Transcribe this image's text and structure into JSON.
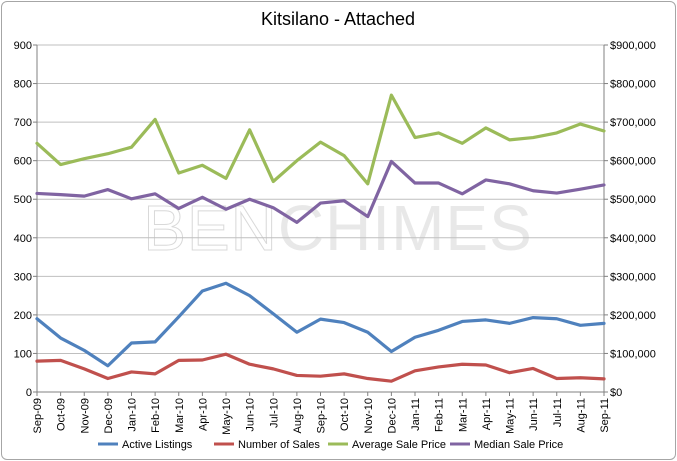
{
  "chart_data": {
    "type": "line",
    "title": "Kitsilano - Attached",
    "watermark": {
      "part1": "BEN",
      "part2": "CHIMES"
    },
    "categories": [
      "Sep-09",
      "Oct-09",
      "Nov-09",
      "Dec-09",
      "Jan-10",
      "Feb-10",
      "Mar-10",
      "Apr-10",
      "May-10",
      "Jun-10",
      "Jul-10",
      "Aug-10",
      "Sep-10",
      "Oct-10",
      "Nov-10",
      "Dec-10",
      "Jan-11",
      "Feb-11",
      "Mar-11",
      "Apr-11",
      "May-11",
      "Jun-11",
      "Jul-11",
      "Aug-11",
      "Sep-11"
    ],
    "y_left": {
      "min": 0,
      "max": 900,
      "ticks": [
        0,
        100,
        200,
        300,
        400,
        500,
        600,
        700,
        800,
        900
      ],
      "tick_labels": [
        "0",
        "100",
        "200",
        "300",
        "400",
        "500",
        "600",
        "700",
        "800",
        "900"
      ]
    },
    "y_right": {
      "min": 0,
      "max": 900000,
      "ticks": [
        0,
        100000,
        200000,
        300000,
        400000,
        500000,
        600000,
        700000,
        800000,
        900000
      ],
      "tick_labels": [
        "$0",
        "$100,000",
        "$200,000",
        "$300,000",
        "$400,000",
        "$500,000",
        "$600,000",
        "$700,000",
        "$800,000",
        "$900,000"
      ]
    },
    "grid": true,
    "legend_position": "bottom",
    "series": [
      {
        "name": "Active Listings",
        "axis": "left",
        "color": "#4f81bd",
        "values": [
          190,
          140,
          108,
          68,
          127,
          130,
          195,
          262,
          282,
          250,
          203,
          155,
          189,
          180,
          155,
          105,
          142,
          160,
          183,
          187,
          178,
          193,
          190,
          173,
          178
        ]
      },
      {
        "name": "Number of Sales",
        "axis": "left",
        "color": "#c0504d",
        "values": [
          80,
          82,
          60,
          35,
          52,
          47,
          82,
          83,
          98,
          72,
          60,
          43,
          41,
          47,
          35,
          28,
          55,
          65,
          72,
          70,
          50,
          61,
          35,
          37,
          34
        ]
      },
      {
        "name": "Average Sale Price",
        "axis": "right",
        "color": "#9bbb59",
        "values": [
          645000,
          590000,
          605000,
          618000,
          635000,
          707000,
          568000,
          588000,
          554000,
          680000,
          546000,
          600000,
          648000,
          613000,
          540000,
          770000,
          660000,
          672000,
          645000,
          685000,
          654000,
          660000,
          672000,
          695000,
          677000
        ]
      },
      {
        "name": "Median Sale Price",
        "axis": "right",
        "color": "#8064a2",
        "values": [
          515000,
          512000,
          508000,
          525000,
          501000,
          514000,
          476000,
          505000,
          474000,
          500000,
          478000,
          440000,
          490000,
          496000,
          455000,
          598000,
          542000,
          542000,
          514000,
          550000,
          540000,
          522000,
          516000,
          526000,
          537000
        ]
      }
    ]
  }
}
